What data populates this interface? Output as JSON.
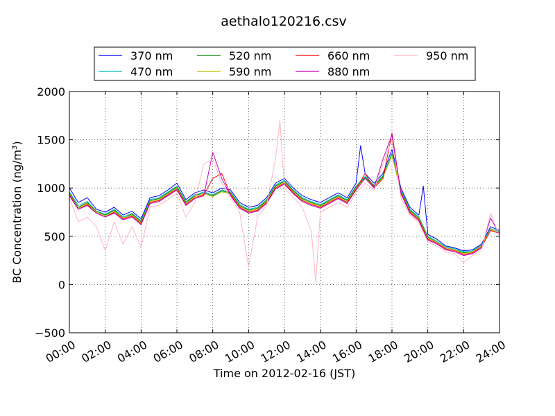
{
  "chart_data": {
    "type": "line",
    "title": "aethalo120216.csv",
    "xlabel": "Time on 2012-02-16 (JST)",
    "ylabel": "BC Concentration (ng/m",
    "ylabel_sup": "3",
    "ylabel_tail": ")",
    "xlim": [
      0,
      24
    ],
    "ylim": [
      -500,
      2000
    ],
    "x_unit": "hours",
    "x_ticks": [
      0,
      2,
      4,
      6,
      8,
      10,
      12,
      14,
      16,
      18,
      20,
      22,
      24
    ],
    "x_tick_labels": [
      "00:00",
      "02:00",
      "04:00",
      "06:00",
      "08:00",
      "10:00",
      "12:00",
      "14:00",
      "16:00",
      "18:00",
      "20:00",
      "22:00",
      "24:00"
    ],
    "y_ticks": [
      -500,
      0,
      500,
      1000,
      1500,
      2000
    ],
    "y_tick_labels": [
      "−500",
      "0",
      "500",
      "1000",
      "1500",
      "2000"
    ],
    "grid": true,
    "grid_style": "dotted",
    "legend_position": "top-center, above plot",
    "legend_columns": 4,
    "series": [
      {
        "name": "370 nm",
        "color": "#0000ff",
        "x": [
          0,
          0.5,
          1,
          1.5,
          2,
          2.5,
          3,
          3.5,
          4,
          4.5,
          5,
          5.5,
          6,
          6.5,
          7,
          7.5,
          8,
          8.5,
          9,
          9.5,
          10,
          10.5,
          11,
          11.5,
          12,
          12.5,
          13,
          13.5,
          14,
          14.5,
          15,
          15.5,
          16,
          16.25,
          16.5,
          17,
          17.5,
          18,
          18.5,
          19,
          19.5,
          19.75,
          20,
          20.5,
          21,
          21.5,
          22,
          22.5,
          23,
          23.5,
          24
        ],
        "y": [
          1000,
          850,
          900,
          780,
          750,
          800,
          720,
          760,
          680,
          900,
          920,
          980,
          1050,
          880,
          950,
          980,
          950,
          1000,
          980,
          850,
          800,
          820,
          900,
          1050,
          1100,
          1000,
          920,
          880,
          850,
          900,
          950,
          900,
          1050,
          1440,
          1150,
          1050,
          1150,
          1400,
          1000,
          800,
          720,
          1020,
          520,
          470,
          400,
          380,
          350,
          360,
          420,
          600,
          560
        ]
      },
      {
        "name": "470 nm",
        "color": "#00bfbf",
        "x": [
          0,
          0.5,
          1,
          1.5,
          2,
          2.5,
          3,
          3.5,
          4,
          4.5,
          5,
          5.5,
          6,
          6.5,
          7,
          7.5,
          8,
          8.5,
          9,
          9.5,
          10,
          10.5,
          11,
          11.5,
          12,
          12.5,
          13,
          13.5,
          14,
          14.5,
          15,
          15.5,
          16,
          16.5,
          17,
          17.5,
          18,
          18.5,
          19,
          19.5,
          20,
          20.5,
          21,
          21.5,
          22,
          22.5,
          23,
          23.5,
          24
        ],
        "y": [
          960,
          820,
          860,
          760,
          730,
          780,
          700,
          740,
          660,
          880,
          900,
          960,
          1020,
          860,
          930,
          960,
          930,
          980,
          960,
          830,
          780,
          800,
          880,
          1030,
          1080,
          980,
          900,
          860,
          830,
          880,
          930,
          880,
          1020,
          1120,
          1030,
          1130,
          1360,
          980,
          780,
          700,
          500,
          450,
          390,
          370,
          340,
          350,
          410,
          580,
          550
        ]
      },
      {
        "name": "520 nm",
        "color": "#008000",
        "x": [
          0,
          0.5,
          1,
          1.5,
          2,
          2.5,
          3,
          3.5,
          4,
          4.5,
          5,
          5.5,
          6,
          6.5,
          7,
          7.5,
          8,
          8.5,
          9,
          9.5,
          10,
          10.5,
          11,
          11.5,
          12,
          12.5,
          13,
          13.5,
          14,
          14.5,
          15,
          15.5,
          16,
          16.5,
          17,
          17.5,
          18,
          18.5,
          19,
          19.5,
          20,
          20.5,
          21,
          21.5,
          22,
          22.5,
          23,
          23.5,
          24
        ],
        "y": [
          950,
          800,
          850,
          760,
          720,
          770,
          690,
          730,
          650,
          870,
          890,
          950,
          1010,
          850,
          920,
          950,
          920,
          970,
          950,
          820,
          770,
          790,
          870,
          1020,
          1070,
          970,
          890,
          850,
          820,
          870,
          920,
          870,
          1010,
          1110,
          1020,
          1120,
          1350,
          970,
          770,
          690,
          490,
          440,
          380,
          360,
          330,
          340,
          400,
          570,
          540
        ]
      },
      {
        "name": "590 nm",
        "color": "#bfbf00",
        "x": [
          0,
          0.5,
          1,
          1.5,
          2,
          2.5,
          3,
          3.5,
          4,
          4.5,
          5,
          5.5,
          6,
          6.5,
          7,
          7.5,
          8,
          8.5,
          9,
          9.5,
          10,
          10.5,
          11,
          11.5,
          12,
          12.5,
          13,
          13.5,
          14,
          14.5,
          15,
          15.5,
          16,
          16.5,
          17,
          17.5,
          18,
          18.5,
          19,
          19.5,
          20,
          20.5,
          21,
          21.5,
          22,
          22.5,
          23,
          23.5,
          24
        ],
        "y": [
          940,
          790,
          840,
          750,
          710,
          760,
          690,
          720,
          640,
          860,
          880,
          940,
          1000,
          840,
          910,
          940,
          910,
          960,
          940,
          810,
          760,
          780,
          860,
          1010,
          1060,
          960,
          880,
          840,
          810,
          860,
          910,
          860,
          1000,
          1100,
          1010,
          1110,
          1340,
          960,
          760,
          680,
          480,
          440,
          380,
          360,
          320,
          340,
          400,
          570,
          540
        ]
      },
      {
        "name": "660 nm",
        "color": "#ff0000",
        "x": [
          0,
          0.5,
          1,
          1.5,
          2,
          2.5,
          3,
          3.5,
          4,
          4.5,
          5,
          5.5,
          6,
          6.5,
          7,
          7.5,
          8,
          8.5,
          9,
          9.5,
          10,
          10.5,
          11,
          11.5,
          12,
          12.5,
          13,
          13.5,
          14,
          14.5,
          15,
          15.5,
          16,
          16.5,
          17,
          17.5,
          18,
          18.5,
          19,
          19.5,
          20,
          20.5,
          21,
          21.5,
          22,
          22.5,
          23,
          23.5,
          24
        ],
        "y": [
          930,
          780,
          830,
          740,
          700,
          750,
          680,
          710,
          630,
          850,
          870,
          930,
          990,
          830,
          900,
          930,
          1100,
          1150,
          930,
          800,
          750,
          770,
          850,
          1000,
          1050,
          950,
          870,
          830,
          800,
          850,
          900,
          850,
          990,
          1150,
          1000,
          1100,
          1570,
          950,
          750,
          670,
          470,
          430,
          370,
          350,
          310,
          330,
          390,
          560,
          530
        ]
      },
      {
        "name": "880 nm",
        "color": "#bf00bf",
        "x": [
          0,
          0.5,
          1,
          1.5,
          2,
          2.5,
          3,
          3.5,
          4,
          4.5,
          5,
          5.5,
          6,
          6.5,
          7,
          7.5,
          8,
          8.5,
          9,
          9.5,
          10,
          10.5,
          11,
          11.5,
          12,
          12.5,
          13,
          13.5,
          14,
          14.5,
          15,
          15.5,
          16,
          16.5,
          17,
          17.5,
          18,
          18.5,
          19,
          19.5,
          20,
          20.5,
          21,
          21.5,
          22,
          22.5,
          23,
          23.5,
          24
        ],
        "y": [
          920,
          780,
          820,
          740,
          700,
          740,
          670,
          700,
          620,
          840,
          860,
          920,
          980,
          820,
          890,
          920,
          1370,
          1100,
          920,
          790,
          740,
          760,
          840,
          990,
          1040,
          940,
          860,
          820,
          790,
          840,
          890,
          840,
          980,
          1100,
          1000,
          1300,
          1550,
          940,
          740,
          660,
          460,
          420,
          360,
          340,
          300,
          320,
          380,
          690,
          520
        ]
      },
      {
        "name": "950 nm",
        "color": "#ffb6c1",
        "x": [
          0,
          0.5,
          1,
          1.5,
          2,
          2.5,
          3,
          3.5,
          4,
          4.5,
          5,
          5.5,
          6,
          6.5,
          7,
          7.5,
          8,
          8.5,
          9,
          9.5,
          10,
          10.5,
          11,
          11.5,
          11.75,
          12,
          12.5,
          13,
          13.5,
          13.75,
          14,
          14.5,
          15,
          15.5,
          16,
          16.5,
          17,
          17.5,
          18,
          18.5,
          19,
          19.5,
          20,
          20.5,
          21,
          21.5,
          22,
          22.5,
          23,
          23.5,
          24
        ],
        "y": [
          900,
          650,
          700,
          600,
          350,
          650,
          420,
          600,
          380,
          800,
          820,
          880,
          950,
          700,
          850,
          1250,
          1300,
          1050,
          900,
          750,
          180,
          700,
          820,
          1300,
          1700,
          1000,
          900,
          800,
          550,
          20,
          750,
          800,
          850,
          800,
          950,
          1050,
          980,
          1250,
          1500,
          900,
          720,
          640,
          440,
          400,
          340,
          320,
          230,
          300,
          360,
          740,
          500
        ]
      }
    ]
  }
}
